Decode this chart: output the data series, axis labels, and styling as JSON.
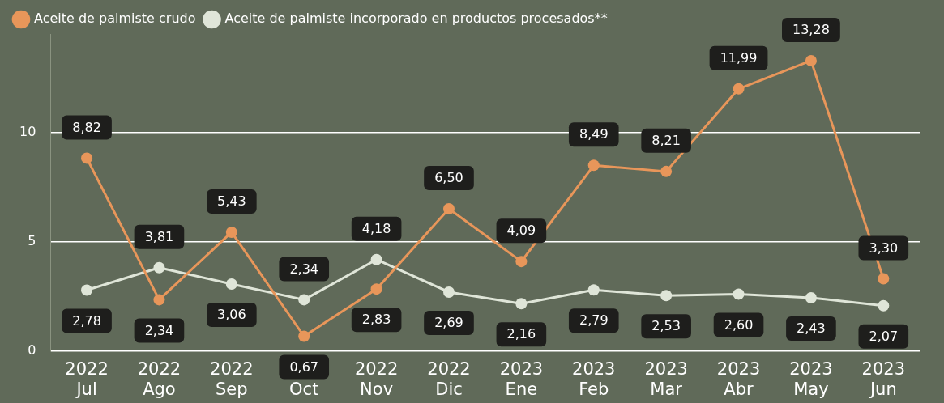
{
  "chart_data": {
    "type": "line",
    "categories": [
      "2022 Jul",
      "2022 Ago",
      "2022 Sep",
      "2022 Oct",
      "2022 Nov",
      "2022 Dic",
      "2023 Ene",
      "2023 Feb",
      "2023 Mar",
      "2023 Abr",
      "2023 May",
      "2023 Jun"
    ],
    "series": [
      {
        "name": "Aceite de palmiste crudo",
        "color": "#e8965a",
        "values": [
          8.82,
          2.34,
          5.43,
          0.67,
          2.83,
          6.5,
          4.09,
          8.49,
          8.21,
          11.99,
          13.28,
          3.3
        ],
        "value_labels": [
          "8,82",
          "2,34",
          "5,43",
          "0,67",
          "2,83",
          "6,50",
          "4,09",
          "8,49",
          "8,21",
          "11,99",
          "13,28",
          "3,30"
        ]
      },
      {
        "name": "Aceite de palmiste incorporado en productos procesados**",
        "color": "#dfe5d8",
        "values": [
          2.78,
          3.81,
          3.06,
          2.34,
          4.18,
          2.69,
          2.16,
          2.79,
          2.53,
          2.6,
          2.43,
          2.07
        ],
        "value_labels": [
          "2,78",
          "3,81",
          "3,06",
          "2,34",
          "4,18",
          "2,69",
          "2,16",
          "2,79",
          "2,53",
          "2,60",
          "2,43",
          "2,07"
        ]
      }
    ],
    "ylim": [
      0,
      14.5
    ],
    "yticks": [
      0,
      5,
      10
    ],
    "grid": "y",
    "legend": "top left",
    "marker": "circle",
    "line_style": "solid"
  }
}
